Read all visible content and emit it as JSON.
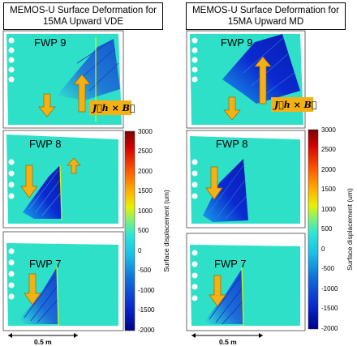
{
  "panels": [
    {
      "title": "MEMOS-U Surface Deformation for 15MA Upward VDE",
      "frames": [
        "FWP 9",
        "FWP 8",
        "FWP 7"
      ],
      "force_label": "J⃗h × B⃗",
      "scale_label": "0.5 m"
    },
    {
      "title": "MEMOS-U Surface Deformation for 15MA Upward MD",
      "frames": [
        "FWP 9",
        "FWP 8",
        "FWP 7"
      ],
      "force_label": "J⃗h × B⃗",
      "scale_label": "0.5 m"
    }
  ],
  "colorbar": {
    "label": "Surface displacement (um)",
    "ticks": [
      "3000",
      "2500",
      "2000",
      "1500",
      "1000",
      "500",
      "0",
      "-500",
      "-1000",
      "-1500",
      "-2000"
    ],
    "colors": [
      "#7a0000",
      "#d40000",
      "#ff5a00",
      "#ffb000",
      "#e8f000",
      "#7cf07a",
      "#2ee6d6",
      "#18c0e8",
      "#1070d8",
      "#0a2ad0",
      "#00008c"
    ]
  },
  "colors": {
    "background": "#2fe0c8",
    "arrow": "#f5b014",
    "arrow_edge": "#9a6a00"
  }
}
